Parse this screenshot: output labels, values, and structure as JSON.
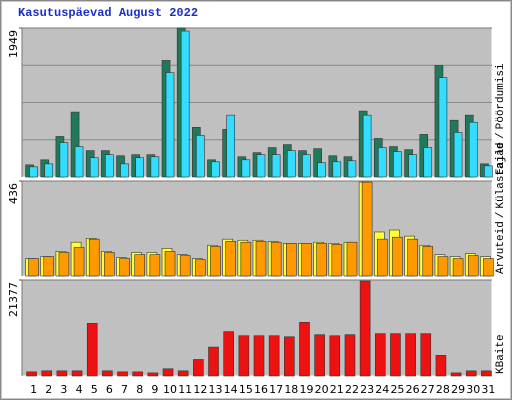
{
  "legend_separator": "/",
  "chart_data": [
    {
      "type": "bar",
      "title": "Kasutuspäevad August 2022",
      "ylim": [
        0,
        1949
      ],
      "yticks": [
        1949
      ],
      "series": [
        {
          "name": "Pöördumisi",
          "color": "#1f7a5c",
          "values": [
            159,
            225,
            530,
            849,
            345,
            345,
            278,
            292,
            292,
            1525,
            1949,
            650,
            225,
            623,
            265,
            318,
            385,
            424,
            345,
            371,
            278,
            265,
            862,
            504,
            398,
            358,
            557,
            1458,
            743,
            809,
            172
          ]
        },
        {
          "name": "Faile",
          "color": "#33ddff",
          "values": [
            133,
            172,
            451,
            398,
            252,
            292,
            172,
            252,
            265,
            1366,
            1909,
            544,
            199,
            809,
            225,
            292,
            292,
            345,
            292,
            186,
            199,
            212,
            809,
            385,
            332,
            292,
            385,
            1299,
            583,
            716,
            146
          ]
        }
      ]
    },
    {
      "type": "bar",
      "ylim": [
        0,
        436
      ],
      "yticks": [
        436
      ],
      "series": [
        {
          "name": "Külastajad",
          "color": "#ffff33",
          "values": [
            80,
            89,
            113,
            155,
            173,
            113,
            84,
            108,
            108,
            127,
            98,
            80,
            141,
            169,
            164,
            164,
            159,
            150,
            150,
            155,
            150,
            155,
            431,
            202,
            211,
            183,
            141,
            98,
            89,
            103,
            89
          ]
        },
        {
          "name": "Arvuteid",
          "color": "#ff9900",
          "values": [
            80,
            89,
            108,
            131,
            169,
            108,
            80,
            98,
            98,
            113,
            94,
            75,
            136,
            159,
            155,
            159,
            155,
            150,
            150,
            150,
            145,
            155,
            431,
            169,
            178,
            169,
            136,
            89,
            80,
            94,
            80
          ]
        }
      ]
    },
    {
      "type": "bar",
      "ylim": [
        0,
        21377
      ],
      "yticks": [
        21377
      ],
      "categories": [
        "1",
        "2",
        "3",
        "4",
        "5",
        "6",
        "7",
        "8",
        "9",
        "10",
        "11",
        "12",
        "13",
        "14",
        "15",
        "16",
        "17",
        "18",
        "19",
        "20",
        "21",
        "22",
        "23",
        "24",
        "25",
        "26",
        "27",
        "28",
        "29",
        "30",
        "31"
      ],
      "category_colors": [
        "#000",
        "#000",
        "#000",
        "#000",
        "#000",
        "#1f7a5c",
        "#1f7a5c",
        "#000",
        "#000",
        "#000",
        "#000",
        "#000",
        "#1f7a5c",
        "#1f7a5c",
        "#000",
        "#000",
        "#000",
        "#000",
        "#000",
        "#1f7a5c",
        "#1f7a5c",
        "#000",
        "#000",
        "#000",
        "#000",
        "#000",
        "#1f7a5c",
        "#1f7a5c",
        "#000",
        "#000",
        "#000"
      ],
      "series": [
        {
          "name": "KBaite",
          "color": "#ee1111",
          "values": [
            920,
            1150,
            1150,
            1150,
            11725,
            1150,
            920,
            920,
            690,
            1609,
            1150,
            3678,
            6437,
            9886,
            8966,
            8966,
            8966,
            8736,
            11955,
            9196,
            8966,
            9196,
            21151,
            9426,
            9426,
            9426,
            9426,
            4598,
            690,
            1150,
            1150
          ]
        }
      ]
    }
  ]
}
